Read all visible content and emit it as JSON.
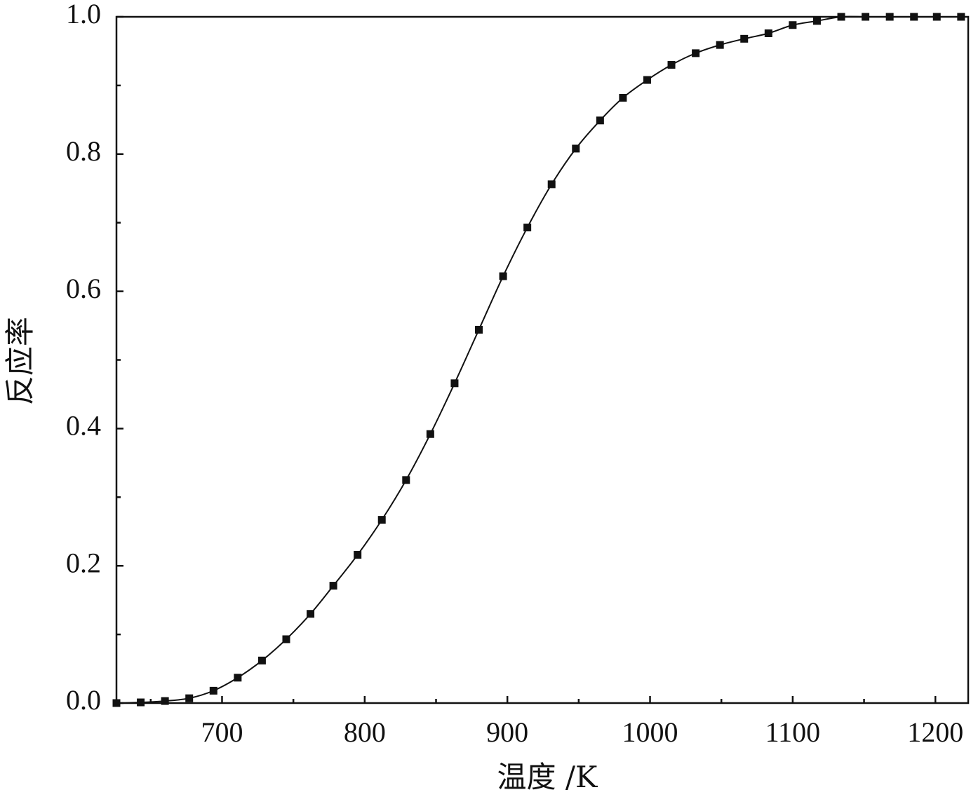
{
  "chart_data": {
    "type": "line",
    "x_label": "温度 /K",
    "y_label": "反应率",
    "x": [
      626,
      643,
      660,
      677,
      694,
      711,
      728,
      745,
      762,
      778,
      795,
      812,
      829,
      846,
      863,
      880,
      897,
      914,
      931,
      948,
      965,
      981,
      998,
      1015,
      1032,
      1049,
      1066,
      1083,
      1100,
      1117,
      1134,
      1151,
      1168,
      1185,
      1201,
      1218
    ],
    "series": [
      {
        "color": "#111111",
        "values": [
          0,
          0.001,
          0.003,
          0.007,
          0.018,
          0.037,
          0.062,
          0.093,
          0.13,
          0.171,
          0.216,
          0.267,
          0.325,
          0.392,
          0.466,
          0.544,
          0.622,
          0.693,
          0.756,
          0.808,
          0.849,
          0.882,
          0.908,
          0.93,
          0.947,
          0.959,
          0.968,
          0.976,
          0.988,
          0.994,
          1,
          1,
          1,
          1,
          1,
          1
        ]
      }
    ],
    "xlim": [
      626,
      1223
    ],
    "ylim": [
      0,
      1
    ],
    "xticks": [
      700,
      800,
      900,
      1000,
      1100,
      1200
    ],
    "xminorticks": [
      650,
      750,
      850,
      950,
      1050,
      1150
    ],
    "yticks": [
      {
        "value": 0,
        "label": "0.0"
      },
      {
        "value": 0.2,
        "label": "0.2"
      },
      {
        "value": 0.4,
        "label": "0.4"
      },
      {
        "value": 0.6,
        "label": "0.6"
      },
      {
        "value": 0.8,
        "label": "0.8"
      },
      {
        "value": 1,
        "label": "1.0"
      }
    ],
    "yminorticks": [
      0.1,
      0.3,
      0.5,
      0.7,
      0.9
    ],
    "grid": false
  }
}
